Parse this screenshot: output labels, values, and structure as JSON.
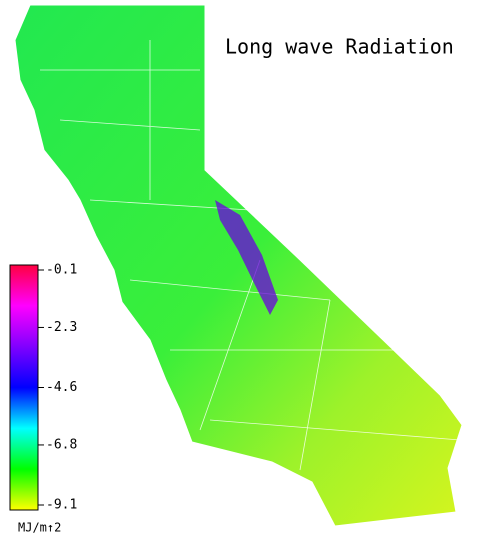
{
  "title": "Long wave Radiation",
  "colorbar": {
    "ticks": [
      -0.1,
      -2.3,
      -4.6,
      -6.8,
      -9.1
    ],
    "range": [
      -9.1,
      -0.1
    ],
    "colors": [
      "#ffff00",
      "#00ff00",
      "#00ffff",
      "#0000ff",
      "#8000ff",
      "#ff00ff",
      "#ff0040"
    ],
    "unit": "MJ/m↑2"
  }
}
